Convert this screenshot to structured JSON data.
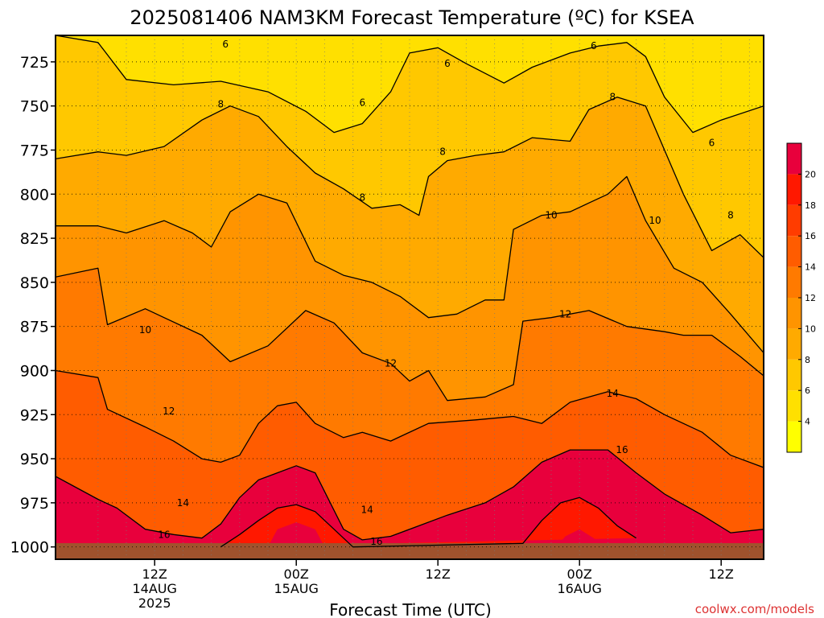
{
  "chart_data": {
    "type": "heatmap",
    "title": "2025081406 NAM3KM Forecast Temperature (ºC) for KSEA",
    "xlabel": "Forecast Time (UTC)",
    "ylabel": "",
    "x_domain": [
      -9,
      141
    ],
    "y_domain": [
      1007,
      710
    ],
    "x_ticks": [
      {
        "x": 12,
        "lines": [
          "12Z",
          "14AUG",
          "2025"
        ]
      },
      {
        "x": 42,
        "lines": [
          "00Z",
          "15AUG"
        ]
      },
      {
        "x": 72,
        "lines": [
          "12Z"
        ]
      },
      {
        "x": 102,
        "lines": [
          "00Z",
          "16AUG"
        ]
      },
      {
        "x": 132,
        "lines": [
          "12Z"
        ]
      }
    ],
    "y_ticks": [
      725,
      750,
      775,
      800,
      825,
      850,
      875,
      900,
      925,
      950,
      975,
      1000
    ],
    "grid": true,
    "colorbar": {
      "levels": [
        2,
        4,
        6,
        8,
        10,
        12,
        14,
        16,
        18,
        20,
        22
      ],
      "labels": [
        4,
        6,
        8,
        10,
        12,
        14,
        16,
        18,
        20
      ],
      "colors": [
        "#ffff00",
        "#ffe000",
        "#ffc800",
        "#ffaa00",
        "#ff9400",
        "#ff7a00",
        "#ff5c00",
        "#ff3c00",
        "#ff1800",
        "#e8003c"
      ]
    },
    "surface_color": "#a0522d",
    "surface_label": "surface",
    "isotherms": [
      {
        "value": 6,
        "label": "6",
        "points": [
          [
            -9,
            710
          ],
          [
            0,
            714
          ],
          [
            6,
            735
          ],
          [
            16,
            738
          ],
          [
            26,
            736
          ],
          [
            36,
            742
          ],
          [
            44,
            753
          ],
          [
            50,
            765
          ],
          [
            56,
            760
          ],
          [
            62,
            742
          ],
          [
            66,
            720
          ],
          [
            72,
            717
          ],
          [
            78,
            726
          ],
          [
            86,
            737
          ],
          [
            92,
            728
          ],
          [
            100,
            720
          ],
          [
            106,
            716
          ],
          [
            112,
            714
          ],
          [
            116,
            722
          ],
          [
            120,
            745
          ],
          [
            126,
            765
          ],
          [
            132,
            758
          ],
          [
            141,
            750
          ]
        ],
        "labels": [
          [
            27,
            715
          ],
          [
            74,
            726
          ],
          [
            56,
            748
          ],
          [
            105,
            716
          ],
          [
            130,
            771
          ]
        ]
      },
      {
        "value": 8,
        "label": "8",
        "points": [
          [
            -9,
            780
          ],
          [
            0,
            776
          ],
          [
            6,
            778
          ],
          [
            14,
            773
          ],
          [
            22,
            758
          ],
          [
            28,
            750
          ],
          [
            34,
            756
          ],
          [
            40,
            773
          ],
          [
            46,
            788
          ],
          [
            52,
            797
          ],
          [
            58,
            808
          ],
          [
            64,
            806
          ],
          [
            68,
            812
          ],
          [
            70,
            790
          ],
          [
            74,
            781
          ],
          [
            80,
            778
          ],
          [
            86,
            776
          ],
          [
            92,
            768
          ],
          [
            100,
            770
          ],
          [
            104,
            752
          ],
          [
            110,
            745
          ],
          [
            116,
            750
          ],
          [
            120,
            775
          ],
          [
            124,
            800
          ],
          [
            130,
            832
          ],
          [
            136,
            823
          ],
          [
            141,
            836
          ]
        ],
        "labels": [
          [
            26,
            749
          ],
          [
            56,
            802
          ],
          [
            73,
            776
          ],
          [
            109,
            745
          ],
          [
            134,
            812
          ]
        ]
      },
      {
        "value": 10,
        "label": "10",
        "points": [
          [
            -9,
            818
          ],
          [
            0,
            818
          ],
          [
            6,
            822
          ],
          [
            14,
            815
          ],
          [
            20,
            822
          ],
          [
            24,
            830
          ],
          [
            28,
            810
          ],
          [
            34,
            800
          ],
          [
            40,
            805
          ],
          [
            46,
            838
          ],
          [
            52,
            846
          ],
          [
            58,
            850
          ],
          [
            64,
            858
          ],
          [
            70,
            870
          ],
          [
            76,
            868
          ],
          [
            82,
            860
          ],
          [
            86,
            860
          ],
          [
            88,
            820
          ],
          [
            94,
            812
          ],
          [
            100,
            810
          ],
          [
            104,
            805
          ],
          [
            108,
            800
          ],
          [
            112,
            790
          ],
          [
            116,
            815
          ],
          [
            122,
            842
          ],
          [
            128,
            850
          ],
          [
            134,
            868
          ],
          [
            141,
            890
          ]
        ],
        "labels": [
          [
            96,
            812
          ],
          [
            118,
            815
          ],
          [
            10,
            877
          ]
        ]
      },
      {
        "value": 12,
        "label": "12",
        "points": [
          [
            -9,
            847
          ],
          [
            0,
            842
          ],
          [
            2,
            874
          ],
          [
            10,
            865
          ],
          [
            14,
            870
          ],
          [
            22,
            880
          ],
          [
            28,
            895
          ],
          [
            36,
            886
          ],
          [
            44,
            866
          ],
          [
            50,
            873
          ],
          [
            56,
            890
          ],
          [
            62,
            896
          ],
          [
            66,
            906
          ],
          [
            70,
            900
          ],
          [
            74,
            917
          ],
          [
            82,
            915
          ],
          [
            88,
            908
          ],
          [
            90,
            872
          ],
          [
            96,
            870
          ],
          [
            104,
            866
          ],
          [
            112,
            875
          ],
          [
            120,
            878
          ],
          [
            124,
            880
          ],
          [
            130,
            880
          ],
          [
            136,
            892
          ],
          [
            141,
            903
          ]
        ],
        "labels": [
          [
            62,
            896
          ],
          [
            99,
            868
          ],
          [
            15,
            923
          ]
        ]
      },
      {
        "value": 14,
        "label": "14",
        "points": [
          [
            -9,
            900
          ],
          [
            0,
            904
          ],
          [
            2,
            922
          ],
          [
            10,
            932
          ],
          [
            16,
            940
          ],
          [
            22,
            950
          ],
          [
            26,
            952
          ],
          [
            30,
            948
          ],
          [
            34,
            930
          ],
          [
            38,
            920
          ],
          [
            42,
            918
          ],
          [
            46,
            930
          ],
          [
            52,
            938
          ],
          [
            56,
            935
          ],
          [
            62,
            940
          ],
          [
            70,
            930
          ],
          [
            80,
            928
          ],
          [
            88,
            926
          ],
          [
            94,
            930
          ],
          [
            100,
            918
          ],
          [
            108,
            912
          ],
          [
            114,
            916
          ],
          [
            120,
            925
          ],
          [
            128,
            935
          ],
          [
            134,
            948
          ],
          [
            141,
            955
          ]
        ],
        "labels": [
          [
            18,
            975
          ],
          [
            57,
            979
          ],
          [
            109,
            913
          ]
        ]
      },
      {
        "value": 16,
        "label": "16",
        "points": [
          [
            -9,
            960
          ],
          [
            0,
            973
          ],
          [
            4,
            978
          ],
          [
            10,
            990
          ],
          [
            16,
            993
          ],
          [
            22,
            995
          ],
          [
            26,
            987
          ],
          [
            30,
            972
          ],
          [
            34,
            962
          ],
          [
            38,
            958
          ],
          [
            42,
            954
          ],
          [
            46,
            958
          ],
          [
            52,
            990
          ],
          [
            56,
            996
          ],
          [
            62,
            994
          ],
          [
            68,
            988
          ],
          [
            74,
            982
          ],
          [
            82,
            975
          ],
          [
            88,
            966
          ],
          [
            94,
            952
          ],
          [
            100,
            945
          ],
          [
            108,
            945
          ],
          [
            114,
            958
          ],
          [
            120,
            970
          ],
          [
            128,
            982
          ],
          [
            134,
            992
          ],
          [
            141,
            990
          ]
        ],
        "labels": [
          [
            14,
            993
          ],
          [
            59,
            997
          ],
          [
            111,
            945
          ]
        ]
      },
      {
        "value": 18,
        "label": "",
        "points": [
          [
            26,
            1000
          ],
          [
            30,
            993
          ],
          [
            34,
            985
          ],
          [
            38,
            978
          ],
          [
            42,
            976
          ],
          [
            46,
            980
          ],
          [
            50,
            990
          ],
          [
            54,
            1000
          ],
          [
            90,
            998
          ],
          [
            94,
            985
          ],
          [
            98,
            975
          ],
          [
            102,
            972
          ],
          [
            106,
            978
          ],
          [
            110,
            988
          ],
          [
            114,
            995
          ]
        ],
        "labels": []
      }
    ]
  },
  "credit": "coolwx.com/models"
}
